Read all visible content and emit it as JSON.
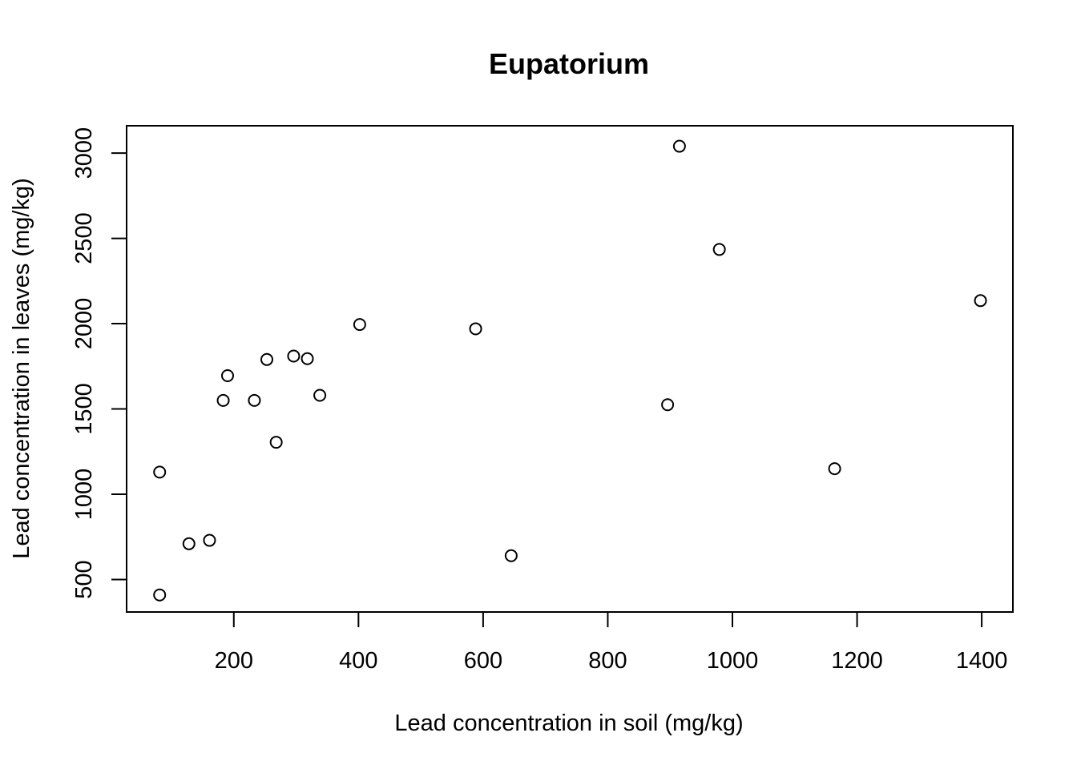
{
  "chart_data": {
    "type": "scatter",
    "title": "Eupatorium",
    "xlabel": "Lead concentration in soil (mg/kg)",
    "ylabel": "Lead concentration in leaves (mg/kg)",
    "xlim": [
      28,
      1450
    ],
    "ylim": [
      310,
      3160
    ],
    "x_ticks": [
      200,
      400,
      600,
      800,
      1000,
      1200,
      1400
    ],
    "y_ticks": [
      500,
      1000,
      1500,
      2000,
      2500,
      3000
    ],
    "grid": false,
    "legend": "none",
    "marker": "open-circle",
    "points": [
      {
        "x": 81,
        "y": 1130
      },
      {
        "x": 81,
        "y": 410
      },
      {
        "x": 128,
        "y": 710
      },
      {
        "x": 161,
        "y": 730
      },
      {
        "x": 183,
        "y": 1550
      },
      {
        "x": 190,
        "y": 1695
      },
      {
        "x": 233,
        "y": 1550
      },
      {
        "x": 253,
        "y": 1790
      },
      {
        "x": 268,
        "y": 1305
      },
      {
        "x": 296,
        "y": 1810
      },
      {
        "x": 318,
        "y": 1795
      },
      {
        "x": 338,
        "y": 1580
      },
      {
        "x": 402,
        "y": 1995
      },
      {
        "x": 588,
        "y": 1970
      },
      {
        "x": 645,
        "y": 640
      },
      {
        "x": 896,
        "y": 1525
      },
      {
        "x": 915,
        "y": 3040
      },
      {
        "x": 979,
        "y": 2435
      },
      {
        "x": 1164,
        "y": 1150
      },
      {
        "x": 1398,
        "y": 2135
      }
    ]
  }
}
